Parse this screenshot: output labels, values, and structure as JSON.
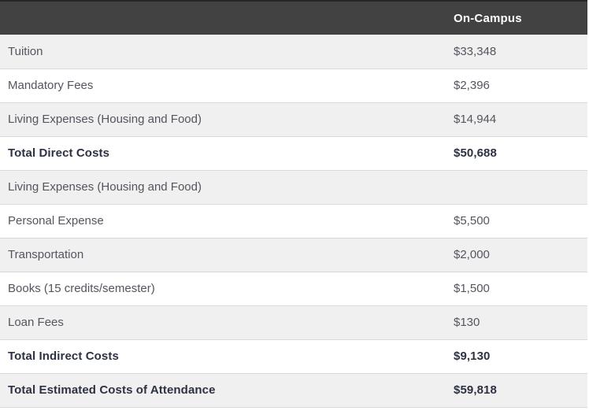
{
  "table": {
    "header": {
      "value": "On-Campus"
    },
    "rows": [
      {
        "label": "Tuition",
        "value": "$33,348"
      },
      {
        "label": "Mandatory Fees",
        "value": "$2,396"
      },
      {
        "label": "Living Expenses (Housing and Food)",
        "value": "$14,944"
      },
      {
        "label": "Total Direct Costs",
        "value": "$50,688",
        "emphasis": true
      },
      {
        "label": "Living Expenses (Housing and Food)",
        "value": ""
      },
      {
        "label": "Personal Expense",
        "value": "$5,500"
      },
      {
        "label": "Transportation",
        "value": "$2,000"
      },
      {
        "label": "Books (15 credits/semester)",
        "value": "$1,500"
      },
      {
        "label": "Loan Fees",
        "value": "$130"
      },
      {
        "label": "Total Indirect Costs",
        "value": "$9,130",
        "emphasis": true
      },
      {
        "label": "Total Estimated Costs of Attendance",
        "value": "$59,818",
        "emphasis": true
      }
    ]
  },
  "colors": {
    "header_bg": "#424242",
    "header_text": "#ffffff",
    "row_alt_bg": "#f0f0f0",
    "row_bg": "#ffffff",
    "row_border": "#d9d9d9",
    "label_text": "#54555e",
    "total_text": "#2d3142",
    "header_top_edge": "#262626"
  }
}
